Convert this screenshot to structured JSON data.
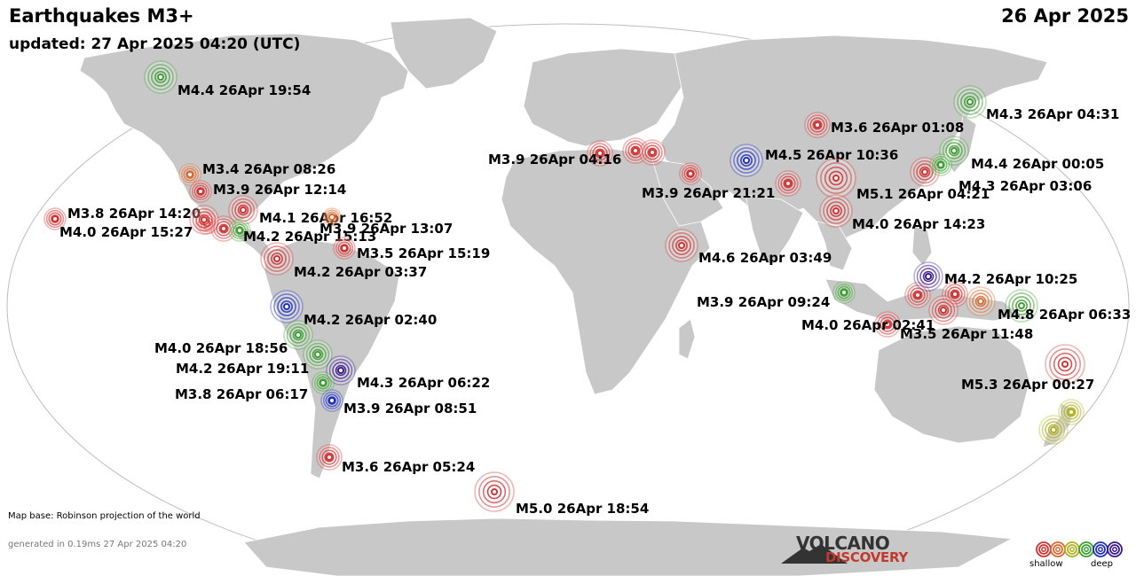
{
  "header": {
    "title": "Earthquakes M3+",
    "updated": "updated: 27 Apr 2025 04:20 (UTC)",
    "date": "26 Apr 2025"
  },
  "footer": {
    "map_base": "Map base: Robinson projection of the world",
    "generated": "generated in 0.19ms 27 Apr 2025 04:20"
  },
  "legend": {
    "shallow": "shallow",
    "deep": "deep",
    "depth_colors": [
      "#d43030",
      "#d86a30",
      "#b0b020",
      "#3ca030",
      "#2030c0",
      "#3a1890"
    ]
  },
  "brand": {
    "line1": "VOLCANO",
    "line2": "DISCOVERY"
  },
  "quakes": [
    {
      "label": "M4.4 26Apr 19:54",
      "color": "#3ca030"
    },
    {
      "label": "M3.4 26Apr 08:26",
      "color": "#d86a30"
    },
    {
      "label": "M3.9 26Apr 12:14",
      "color": "#d43030"
    },
    {
      "label": "M3.8 26Apr 14:20",
      "color": "#d43030"
    },
    {
      "label": "M4.0 26Apr 15:27",
      "color": "#d43030"
    },
    {
      "label": "M4.1 26Apr 16:52",
      "color": "#d43030"
    },
    {
      "label": "M3.9 26Apr 13:07",
      "color": "#d86a30"
    },
    {
      "label": "M4.2 26Apr 15:13",
      "color": "#3ca030"
    },
    {
      "label": "M3.5 26Apr 15:19",
      "color": "#d43030"
    },
    {
      "label": "M4.2 26Apr 03:37",
      "color": "#d43030"
    },
    {
      "label": "M4.2 26Apr 02:40",
      "color": "#2030c0"
    },
    {
      "label": "M4.0 26Apr 18:56",
      "color": "#3ca030"
    },
    {
      "label": "M4.2 26Apr 19:11",
      "color": "#3ca030"
    },
    {
      "label": "M4.3 26Apr 06:22",
      "color": "#3a1890"
    },
    {
      "label": "M3.8 26Apr 06:17",
      "color": "#3ca030"
    },
    {
      "label": "M3.9 26Apr 08:51",
      "color": "#2030c0"
    },
    {
      "label": "M3.6 26Apr 05:24",
      "color": "#d43030"
    },
    {
      "label": "M5.0 26Apr 18:54",
      "color": "#d43030"
    },
    {
      "label": "M3.9 26Apr 04:16",
      "color": "#d43030"
    },
    {
      "label": "M3.6 26Apr 01:08",
      "color": "#d43030"
    },
    {
      "label": "M4.5 26Apr 10:36",
      "color": "#2030c0"
    },
    {
      "label": "M3.9 26Apr 21:21",
      "color": "#d43030"
    },
    {
      "label": "M5.1 26Apr 04:21",
      "color": "#d43030"
    },
    {
      "label": "M4.0 26Apr 14:23",
      "color": "#d43030"
    },
    {
      "label": "M4.6 26Apr 03:49",
      "color": "#d43030"
    },
    {
      "label": "M3.9 26Apr 09:24",
      "color": "#3ca030"
    },
    {
      "label": "M4.3 26Apr 04:31",
      "color": "#3ca030"
    },
    {
      "label": "M4.4 26Apr 00:05",
      "color": "#3ca030"
    },
    {
      "label": "M4.3 26Apr 03:06",
      "color": "#3ca030"
    },
    {
      "label": "M4.2 26Apr 10:25",
      "color": "#3a1890"
    },
    {
      "label": "M4.8 26Apr 06:33",
      "color": "#3ca030"
    },
    {
      "label": "M4.0 26Apr 02:41",
      "color": "#d43030"
    },
    {
      "label": "M3.5 26Apr 11:48",
      "color": "#d43030"
    },
    {
      "label": "M5.3 26Apr 00:27",
      "color": "#d43030"
    }
  ]
}
